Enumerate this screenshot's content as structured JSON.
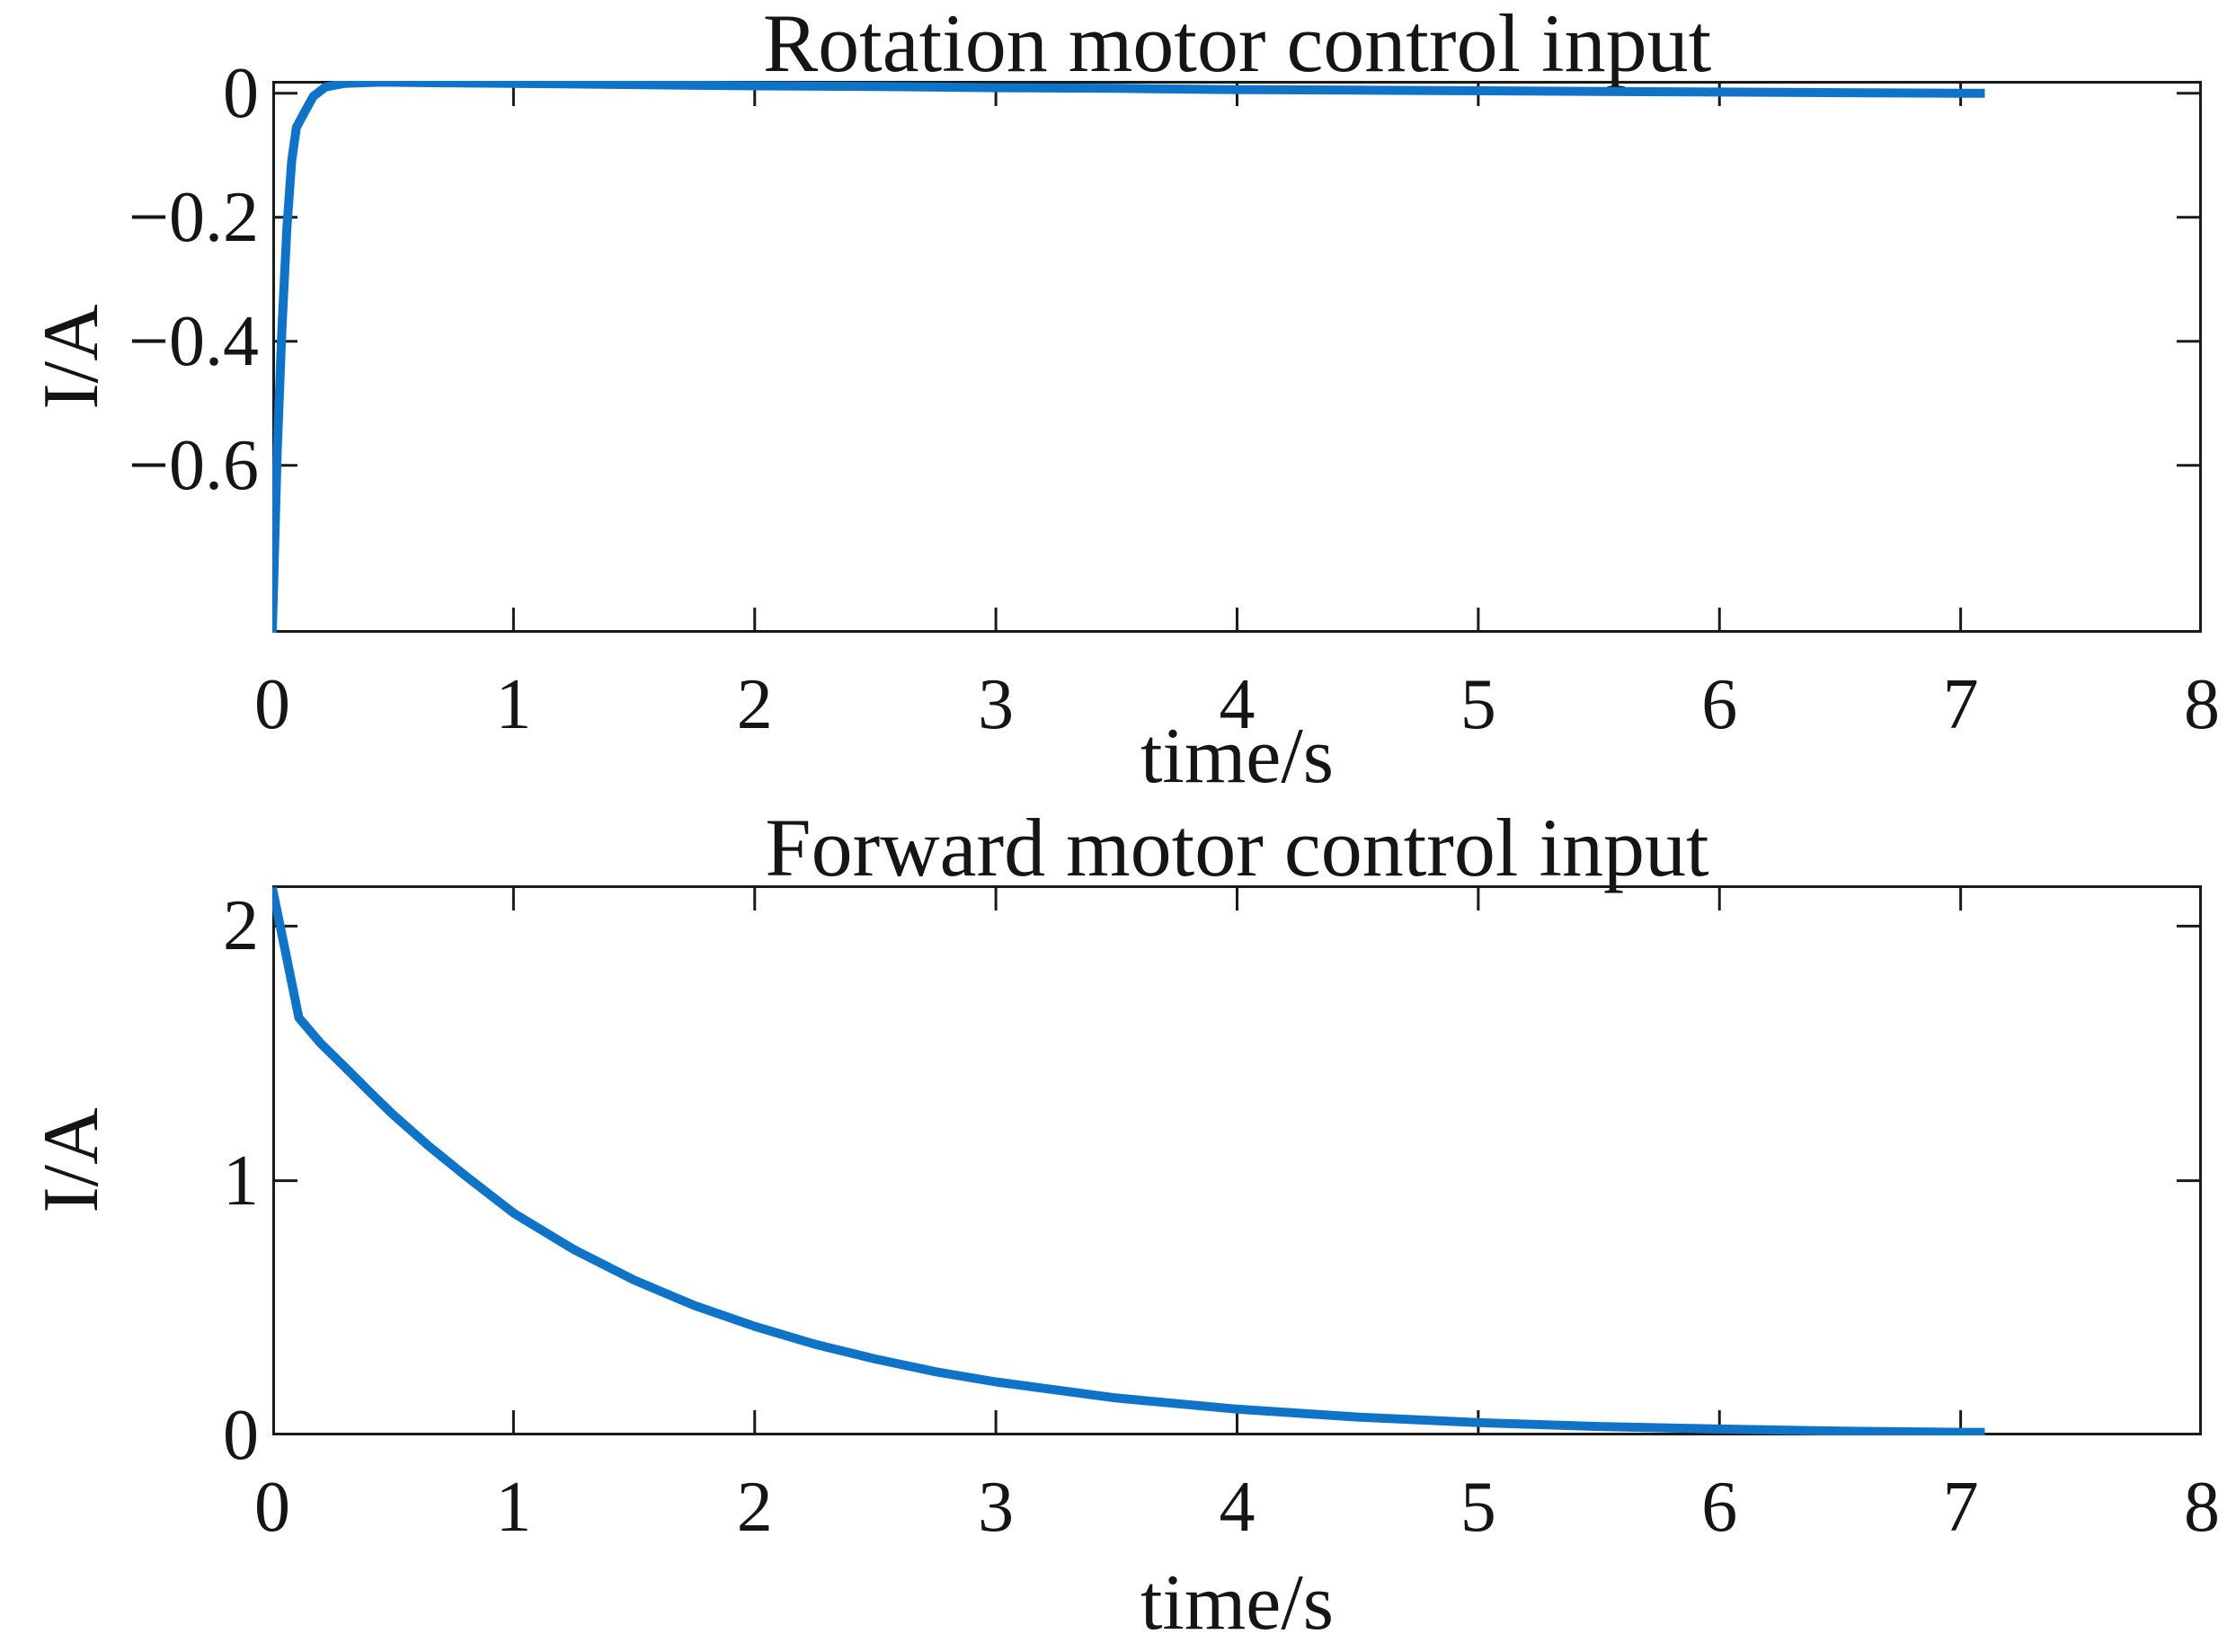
{
  "figure": {
    "background": "#FFFFFF",
    "axis_color": "#1A1A1A",
    "text_color": "#151515",
    "line_color": "#0F74C8"
  },
  "chart_data": [
    {
      "type": "line",
      "title": "Rotation motor control input",
      "xlabel": "time/s",
      "ylabel": "I/A",
      "xlim": [
        0,
        8
      ],
      "ylim": [
        -0.87,
        0.02
      ],
      "xticks": [
        0,
        1,
        2,
        3,
        4,
        5,
        6,
        7,
        8
      ],
      "xtick_labels": [
        "0",
        "1",
        "2",
        "3",
        "4",
        "5",
        "6",
        "7",
        "8"
      ],
      "yticks": [
        0,
        -0.2,
        -0.4,
        -0.6
      ],
      "ytick_labels": [
        "0",
        "−0.2",
        "−0.4",
        "−0.6"
      ],
      "grid": false,
      "legend_position": "none",
      "series": [
        {
          "x": [
            0,
            0.02,
            0.04,
            0.06,
            0.08,
            0.1,
            0.13,
            0.17,
            0.22,
            0.3,
            0.45,
            0.7,
            1.0,
            1.5,
            2.0,
            2.5,
            3.0,
            3.5,
            4.0,
            4.5,
            5.0,
            5.5,
            6.0,
            6.5,
            7.0,
            7.1
          ],
          "y": [
            -0.87,
            -0.58,
            -0.38,
            -0.22,
            -0.11,
            -0.055,
            -0.033,
            -0.005,
            0.01,
            0.016,
            0.018,
            0.017,
            0.016,
            0.014,
            0.012,
            0.011,
            0.009,
            0.008,
            0.006,
            0.005,
            0.004,
            0.003,
            0.002,
            0.001,
            0.0,
            0.0
          ]
        }
      ]
    },
    {
      "type": "line",
      "title": "Forward motor control input",
      "xlabel": "time/s",
      "ylabel": "I/A",
      "xlim": [
        0,
        8
      ],
      "ylim": [
        0,
        2.16
      ],
      "xticks": [
        0,
        1,
        2,
        3,
        4,
        5,
        6,
        7,
        8
      ],
      "xtick_labels": [
        "0",
        "1",
        "2",
        "3",
        "4",
        "5",
        "6",
        "7",
        "8"
      ],
      "yticks": [
        0,
        1,
        2
      ],
      "ytick_labels": [
        "0",
        "1",
        "2"
      ],
      "grid": false,
      "legend_position": "none",
      "series": [
        {
          "x": [
            0,
            0.05,
            0.11,
            0.2,
            0.3,
            0.4,
            0.5,
            0.65,
            0.8,
            1.0,
            1.25,
            1.5,
            1.75,
            2.0,
            2.25,
            2.5,
            2.75,
            3.0,
            3.5,
            4.0,
            4.5,
            5.0,
            5.5,
            6.0,
            6.5,
            7.0,
            7.1
          ],
          "y": [
            2.15,
            1.92,
            1.64,
            1.54,
            1.447,
            1.352,
            1.26,
            1.135,
            1.02,
            0.873,
            0.73,
            0.61,
            0.51,
            0.428,
            0.358,
            0.3,
            0.25,
            0.21,
            0.147,
            0.103,
            0.072,
            0.05,
            0.035,
            0.025,
            0.017,
            0.012,
            0.012
          ]
        }
      ]
    }
  ]
}
